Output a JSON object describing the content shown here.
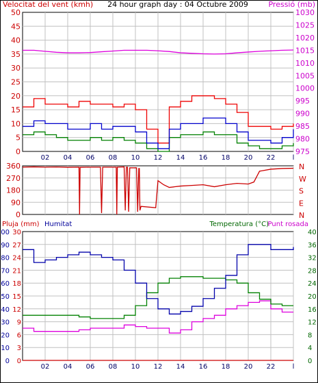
{
  "colors": {
    "axis": "#000000",
    "grid": "#c0c0c0",
    "wind_text": "#cc0000",
    "pressure_text": "#cc00cc",
    "humidity_text": "#000099",
    "temperature_text": "#006600",
    "dew_text": "#cc00cc",
    "wind_avg": "#0000cc",
    "wind_gust": "#ee0000",
    "wind_min": "#008000",
    "pressure": "#dd00dd",
    "direction": "#cc0000",
    "rain": "#cc0000",
    "humidity": "#0000aa",
    "temperature": "#008000",
    "dew": "#dd00dd"
  },
  "top_panel": {
    "title": "24 hour graph day : 04 Octubre 2009",
    "left_label": "Velocitat del vent (kmh)",
    "right_label": "Pressió (mb)"
  },
  "mid_panel": {
    "compass": [
      "N",
      "W",
      "S",
      "E",
      "N"
    ]
  },
  "bottom_panel": {
    "rain_label": "Pluja (mm)",
    "humidity_label": "Humitat",
    "temp_label": "Temperatura (°C)",
    "dew_label": "Punt rosada"
  },
  "chart_data": [
    {
      "type": "line",
      "title": "24 hour graph day : 04 Octubre 2009",
      "x_ticks": [
        "02",
        "04",
        "06",
        "08",
        "10",
        "12",
        "14",
        "16",
        "18",
        "20",
        "22",
        "l"
      ],
      "xlim": [
        0,
        24
      ],
      "ylabel": "Velocitat del vent (kmh)",
      "ylim": [
        0,
        50
      ],
      "y_ticks": [
        "0",
        "5",
        "10",
        "15",
        "20",
        "25",
        "30",
        "35",
        "40",
        "45",
        "50"
      ],
      "y2label": "Pressió (mb)",
      "y2lim": [
        975,
        1030
      ],
      "y2_ticks": [
        "975",
        "980",
        "985",
        "990",
        "995",
        "1000",
        "1005",
        "1010",
        "1015",
        "1020",
        "1025",
        "1030"
      ],
      "grid": true,
      "series": [
        {
          "key": "gust",
          "axis": "y",
          "x": [
            0,
            1,
            2,
            3,
            4,
            5,
            6,
            7,
            8,
            9,
            10,
            11,
            12,
            13,
            14,
            15,
            16,
            17,
            18,
            19,
            20,
            21,
            22,
            23,
            24
          ],
          "values": [
            16,
            19,
            17,
            17,
            16,
            18,
            17,
            17,
            16,
            17,
            15,
            8,
            3,
            16,
            18,
            20,
            20,
            19,
            17,
            14,
            9,
            9,
            8,
            9,
            10
          ]
        },
        {
          "key": "avg",
          "axis": "y",
          "x": [
            0,
            1,
            2,
            3,
            4,
            5,
            6,
            7,
            8,
            9,
            10,
            11,
            12,
            13,
            14,
            15,
            16,
            17,
            18,
            19,
            20,
            21,
            22,
            23,
            24
          ],
          "values": [
            9,
            11,
            10,
            10,
            8,
            8,
            10,
            8,
            9,
            9,
            7,
            3,
            1,
            8,
            10,
            10,
            12,
            12,
            10,
            7,
            4,
            4,
            3,
            5,
            8
          ]
        },
        {
          "key": "min",
          "axis": "y",
          "x": [
            0,
            1,
            2,
            3,
            4,
            5,
            6,
            7,
            8,
            9,
            10,
            11,
            12,
            13,
            14,
            15,
            16,
            17,
            18,
            19,
            20,
            21,
            22,
            23,
            24
          ],
          "values": [
            6,
            7,
            6,
            5,
            4,
            4,
            5,
            4,
            5,
            4,
            3,
            1,
            0,
            5,
            6,
            6,
            7,
            6,
            6,
            3,
            2,
            1,
            1,
            2,
            3
          ]
        },
        {
          "key": "pressure",
          "axis": "y2",
          "x": [
            0,
            1,
            2,
            3,
            4,
            5,
            6,
            7,
            8,
            9,
            10,
            11,
            12,
            13,
            14,
            15,
            16,
            17,
            18,
            19,
            20,
            21,
            22,
            23,
            24
          ],
          "values": [
            1015,
            1015,
            1014.6,
            1014.2,
            1014,
            1014,
            1014.1,
            1014.4,
            1014.7,
            1015,
            1015,
            1015,
            1014.8,
            1014.5,
            1014,
            1013.8,
            1013.6,
            1013.5,
            1013.6,
            1014,
            1014.3,
            1014.6,
            1014.8,
            1015,
            1015.1
          ]
        }
      ]
    },
    {
      "type": "line",
      "title": "",
      "xlim": [
        0,
        24
      ],
      "ylim": [
        0,
        360
      ],
      "y_ticks": [
        "0",
        "90",
        "180",
        "270",
        "360"
      ],
      "grid": true,
      "series": [
        {
          "key": "direction",
          "x": [
            0,
            1,
            2,
            3,
            4,
            5,
            5.05,
            5.1,
            6,
            6.9,
            7,
            7.1,
            8,
            8.3,
            8.35,
            8.4,
            9,
            9.1,
            9.2,
            9.3,
            9.4,
            9.5,
            10.1,
            10.2,
            10.3,
            10.35,
            10.4,
            10.5,
            11.8,
            12,
            12.5,
            13,
            14,
            15,
            16,
            17,
            18,
            19,
            20,
            20.5,
            21,
            22,
            23,
            24
          ],
          "values": [
            350,
            352,
            350,
            351,
            349,
            350,
            0,
            349,
            350,
            350,
            10,
            350,
            350,
            350,
            0,
            350,
            352,
            30,
            350,
            350,
            20,
            345,
            345,
            20,
            340,
            340,
            30,
            60,
            50,
            250,
            220,
            200,
            210,
            215,
            220,
            205,
            220,
            230,
            225,
            240,
            320,
            335,
            340,
            342
          ]
        }
      ]
    },
    {
      "type": "line",
      "title": "",
      "xlim": [
        0,
        24
      ],
      "x_ticks": [
        "02",
        "04",
        "06",
        "08",
        "10",
        "12",
        "14",
        "16",
        "18",
        "20",
        "22",
        "l"
      ],
      "ylabel": "Pluja (mm)",
      "ylim": [
        0,
        30
      ],
      "y_ticks": [
        "0",
        "3",
        "6",
        "9",
        "12",
        "15",
        "18",
        "21",
        "24",
        "27",
        "30"
      ],
      "y_humidity_ticks": [
        "0",
        "10",
        "20",
        "30",
        "40",
        "50",
        "60",
        "70",
        "80",
        "90",
        "100"
      ],
      "y2label": "Temperatura (°C)",
      "y2lim": [
        0,
        40
      ],
      "y2_ticks": [
        "0",
        "4",
        "8",
        "12",
        "16",
        "20",
        "24",
        "28",
        "32",
        "36",
        "40"
      ],
      "grid": true,
      "series": [
        {
          "key": "rain",
          "axis": "y",
          "x": [
            0,
            24
          ],
          "values": [
            0,
            0
          ]
        },
        {
          "key": "humidity",
          "axis": "yh",
          "x": [
            0,
            1,
            2,
            3,
            4,
            5,
            6,
            7,
            8,
            9,
            10,
            11,
            12,
            13,
            14,
            15,
            16,
            17,
            18,
            19,
            20,
            21,
            22,
            23,
            24
          ],
          "values": [
            86,
            76,
            78,
            80,
            82,
            84,
            82,
            80,
            78,
            70,
            60,
            48,
            40,
            36,
            38,
            42,
            48,
            56,
            66,
            82,
            90,
            90,
            86,
            86,
            88
          ]
        },
        {
          "key": "temperature",
          "axis": "y2",
          "x": [
            0,
            1,
            2,
            3,
            4,
            5,
            6,
            7,
            8,
            9,
            10,
            11,
            12,
            13,
            14,
            15,
            16,
            17,
            18,
            19,
            20,
            21,
            22,
            23,
            24
          ],
          "values": [
            14,
            14,
            14,
            14,
            14,
            13.5,
            13,
            13,
            13,
            14,
            17,
            21,
            24,
            25.5,
            26,
            26,
            25.5,
            25.5,
            25,
            24,
            21,
            19,
            17.5,
            17,
            17
          ]
        },
        {
          "key": "dew",
          "axis": "y2",
          "x": [
            0,
            1,
            2,
            3,
            4,
            5,
            6,
            7,
            8,
            9,
            10,
            11,
            12,
            13,
            14,
            15,
            16,
            17,
            18,
            19,
            20,
            21,
            22,
            23,
            24
          ],
          "values": [
            10,
            9,
            9,
            9,
            9,
            9.5,
            10,
            10,
            10,
            11,
            10.5,
            10,
            10,
            8.5,
            9.5,
            12,
            13,
            14,
            16,
            17,
            18,
            18.5,
            16,
            15,
            15
          ]
        }
      ]
    }
  ]
}
